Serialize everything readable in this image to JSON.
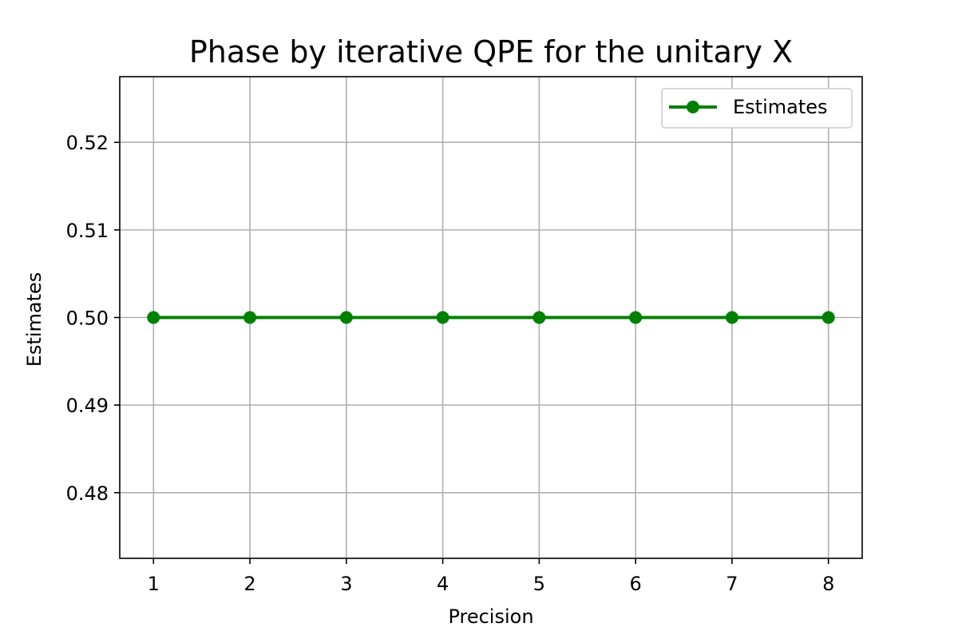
{
  "chart_data": {
    "type": "line",
    "title": "Phase by iterative QPE for the unitary X",
    "xlabel": "Precision",
    "ylabel": "Estimates",
    "x": [
      1,
      2,
      3,
      4,
      5,
      6,
      7,
      8
    ],
    "series": [
      {
        "name": "Estimates",
        "values": [
          0.5,
          0.5,
          0.5,
          0.5,
          0.5,
          0.5,
          0.5,
          0.5
        ],
        "color": "#008000",
        "marker": "circle"
      }
    ],
    "xticks": [
      "1",
      "2",
      "3",
      "4",
      "5",
      "6",
      "7",
      "8"
    ],
    "yticks": [
      "0.48",
      "0.49",
      "0.50",
      "0.51",
      "0.52"
    ],
    "xlim": [
      0.65,
      8.35
    ],
    "ylim": [
      0.4725,
      0.5275
    ],
    "grid": true,
    "legend": "top-right",
    "colors": {
      "grid": "#b0b0b0",
      "axes": "#000000",
      "background": "#ffffff"
    }
  }
}
